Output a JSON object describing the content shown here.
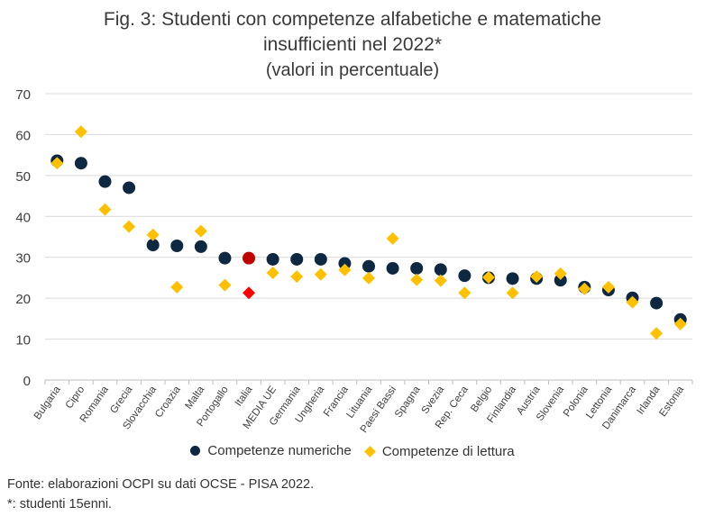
{
  "chart_data": {
    "type": "scatter",
    "title": "Fig. 3: Studenti con competenze alfabetiche e matematiche insufficienti nel 2022*",
    "title_lines": [
      "Fig. 3: Studenti con competenze alfabetiche e matematiche",
      "insufficienti nel 2022*"
    ],
    "subtitle": "(valori in percentuale)",
    "ylim": [
      0,
      70
    ],
    "yticks": [
      0,
      10,
      20,
      30,
      40,
      50,
      60,
      70
    ],
    "grid": true,
    "legend_position": "bottom",
    "categories": [
      "Bulgaria",
      "Cipro",
      "Romania",
      "Grecia",
      "Slovacchia",
      "Croazia",
      "Malta",
      "Portogallo",
      "Italia",
      "MEDIA UE",
      "Germania",
      "Ungheria",
      "Francia",
      "Lituania",
      "Paesi Bassi",
      "Spagna",
      "Svezia",
      "Rep. Ceca",
      "Belgio",
      "Finlandia",
      "Austria",
      "Slovenia",
      "Polonia",
      "Lettonia",
      "Danimarca",
      "Irlanda",
      "Estonia"
    ],
    "series": [
      {
        "name": "Competenze numeriche",
        "marker": "circle",
        "color": "#0e2841",
        "highlight": {
          "category": "Italia",
          "color": "#c00000"
        },
        "values": [
          53.6,
          53.0,
          48.5,
          47.0,
          33.0,
          32.8,
          32.6,
          29.8,
          29.8,
          29.5,
          29.5,
          29.5,
          28.5,
          27.8,
          27.3,
          27.3,
          27.0,
          25.5,
          25.0,
          24.8,
          24.8,
          24.4,
          22.7,
          22.0,
          20.1,
          18.8,
          14.8
        ]
      },
      {
        "name": "Competenze di lettura",
        "marker": "diamond",
        "color": "#ffc000",
        "highlight": {
          "category": "Italia",
          "color": "#ff0000"
        },
        "values": [
          53.0,
          60.7,
          41.7,
          37.5,
          35.5,
          22.7,
          36.4,
          23.2,
          21.3,
          26.2,
          25.3,
          25.8,
          26.9,
          24.9,
          34.6,
          24.5,
          24.3,
          21.3,
          25.1,
          21.3,
          25.3,
          26.0,
          22.3,
          22.7,
          19.0,
          11.4,
          13.7
        ]
      }
    ]
  },
  "footnotes": {
    "source": "Fonte: elaborazioni OCPI su dati OCSE - PISA 2022.",
    "note": "*: studenti 15enni."
  }
}
